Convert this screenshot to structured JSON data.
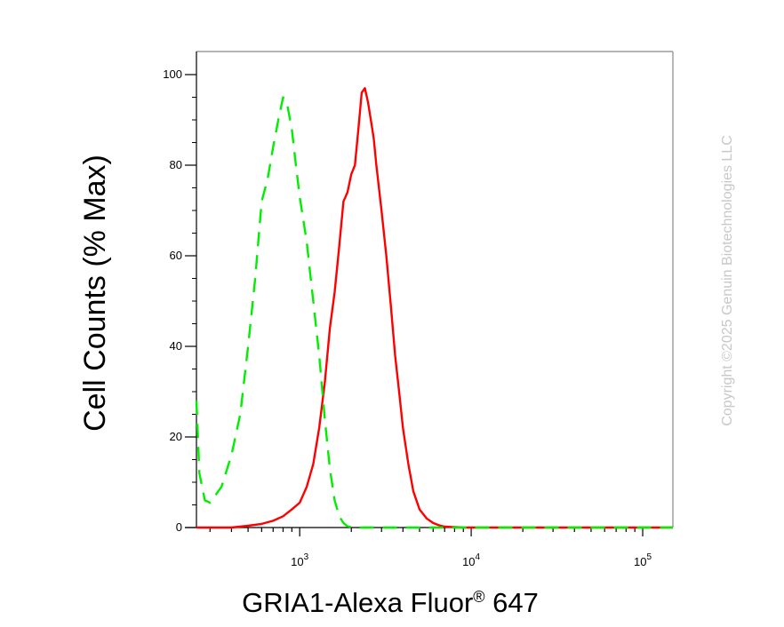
{
  "chart_data": {
    "type": "line",
    "title": "",
    "xlabel": "GRIA1-Alexa Fluor",
    "xlabel_superscript": "®",
    "xlabel_suffix": " 647",
    "ylabel": "Cell Counts (% Max)",
    "x_scale": "log",
    "xlim": [
      250,
      150000
    ],
    "ylim": [
      0,
      100
    ],
    "y_ticks": [
      0,
      20,
      40,
      60,
      80,
      100
    ],
    "x_ticks": [
      {
        "value": 1000,
        "base": "10",
        "exp": "3"
      },
      {
        "value": 10000,
        "base": "10",
        "exp": "4"
      },
      {
        "value": 100000,
        "base": "10",
        "exp": "5"
      }
    ],
    "grid": false,
    "legend": "none",
    "series": [
      {
        "color": "#ff0000",
        "dash": "solid",
        "x": [
          250,
          400,
          500,
          600,
          700,
          800,
          900,
          1000,
          1100,
          1200,
          1300,
          1400,
          1500,
          1600,
          1700,
          1800,
          1900,
          2000,
          2100,
          2200,
          2300,
          2400,
          2500,
          2600,
          2700,
          2800,
          3000,
          3200,
          3400,
          3600,
          3800,
          4000,
          4300,
          4600,
          5000,
          5500,
          6000,
          6500,
          7000,
          8000,
          9000,
          10000,
          150000
        ],
        "y": [
          0,
          0,
          0.4,
          0.8,
          1.5,
          2.5,
          4,
          5.5,
          9,
          14,
          22,
          32,
          44,
          52,
          62,
          72,
          74,
          78,
          80,
          88,
          96,
          97,
          94,
          90,
          86,
          80,
          70,
          60,
          49,
          38,
          30,
          22,
          14,
          8,
          4,
          2,
          1,
          0.5,
          0.2,
          0.1,
          0,
          0,
          0
        ]
      },
      {
        "color": "#00ee00",
        "dash": "dashed",
        "x": [
          250,
          260,
          280,
          300,
          350,
          400,
          450,
          500,
          550,
          600,
          650,
          700,
          750,
          800,
          850,
          900,
          950,
          1000,
          1100,
          1200,
          1300,
          1400,
          1500,
          1600,
          1700,
          1800,
          1900,
          2000,
          2200,
          2500,
          3000,
          150000
        ],
        "y": [
          28,
          12,
          6,
          5.5,
          9,
          16,
          25,
          40,
          55,
          72,
          77,
          84,
          90,
          95,
          93,
          88,
          80,
          73,
          63,
          50,
          38,
          24,
          13,
          6,
          2.5,
          1,
          0.3,
          0.1,
          0,
          0,
          0,
          0
        ]
      }
    ]
  },
  "watermark": "Copyright ©2025 Genuin Biotechnologies LLC"
}
